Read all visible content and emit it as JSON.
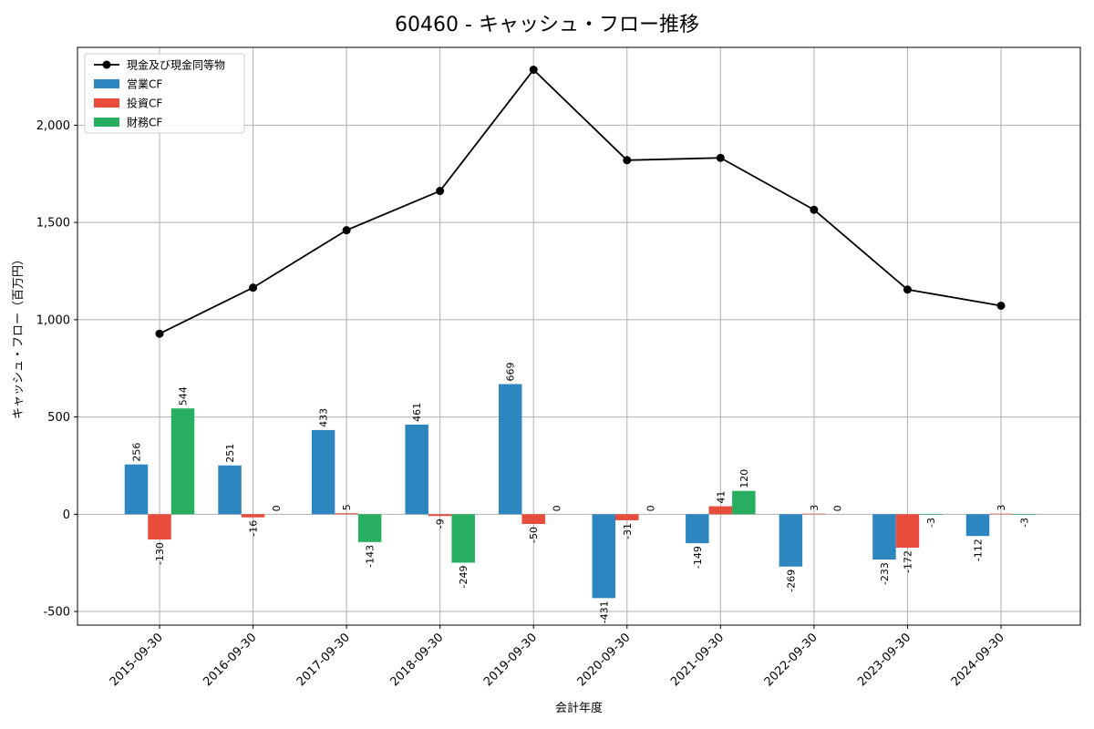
{
  "chart_data": {
    "type": "bar",
    "title": "60460 - キャッシュ・フロー推移",
    "xlabel": "会計年度",
    "ylabel": "キャッシュ・フロー（百万円）",
    "categories": [
      "2015-09-30",
      "2016-09-30",
      "2017-09-30",
      "2018-09-30",
      "2019-09-30",
      "2020-09-30",
      "2021-09-30",
      "2022-09-30",
      "2023-09-30",
      "2024-09-30"
    ],
    "ylim": [
      -570,
      2400
    ],
    "yticks": [
      -500,
      0,
      500,
      1000,
      1500,
      2000
    ],
    "ytick_labels": [
      "-500",
      "0",
      "500",
      "1,000",
      "1,500",
      "2,000"
    ],
    "grid": true,
    "legend_position": "top-left",
    "series": [
      {
        "name": "営業CF",
        "kind": "bar",
        "color": "#2e86c1",
        "values": [
          256,
          251,
          433,
          461,
          669,
          -431,
          -149,
          -269,
          -233,
          -112
        ],
        "labels": [
          "256",
          "251",
          "433",
          "461",
          "669",
          "-431",
          "-149",
          "-269",
          "-233",
          "-112"
        ]
      },
      {
        "name": "投資CF",
        "kind": "bar",
        "color": "#e74c3c",
        "values": [
          -130,
          -16,
          5,
          -9,
          -50,
          -31,
          41,
          3,
          -172,
          3
        ],
        "labels": [
          "-130",
          "-16",
          "5",
          "-9",
          "-50",
          "-31",
          "41",
          "3",
          "-172",
          "3"
        ]
      },
      {
        "name": "財務CF",
        "kind": "bar",
        "color": "#27ae60",
        "values": [
          544,
          0,
          -143,
          -249,
          0,
          0,
          120,
          0,
          -3,
          -3
        ],
        "labels": [
          "544",
          "0",
          "-143",
          "-249",
          "0",
          "0",
          "120",
          "0",
          "-3",
          "-3"
        ]
      },
      {
        "name": "現金及び現金同等物",
        "kind": "line",
        "color": "#000000",
        "values": [
          928,
          1165,
          1460,
          1662,
          2285,
          1820,
          1832,
          1565,
          1155,
          1072
        ]
      }
    ]
  }
}
